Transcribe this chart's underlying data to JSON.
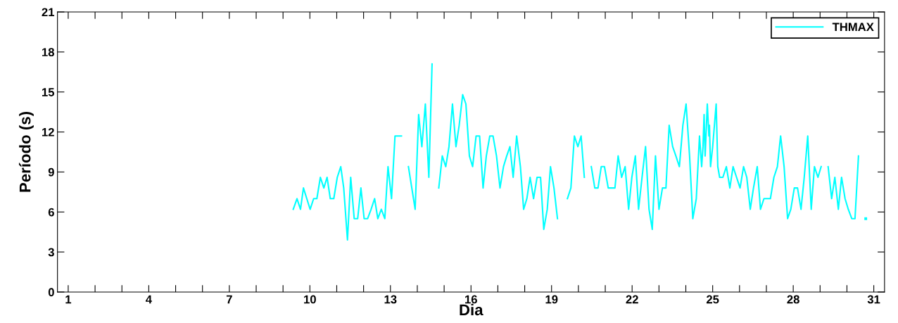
{
  "chart_data": {
    "type": "line",
    "xlabel": "Dia",
    "ylabel": "Período (s)",
    "xlim": [
      0.6,
      31.4
    ],
    "ylim": [
      0,
      21
    ],
    "xticks": [
      1,
      {
        "value": 2,
        "label": null
      },
      {
        "value": 3,
        "label": null
      },
      4,
      {
        "value": 5,
        "label": null
      },
      {
        "value": 6,
        "label": null
      },
      7,
      {
        "value": 8,
        "label": null
      },
      {
        "value": 9,
        "label": null
      },
      10,
      {
        "value": 11,
        "label": null
      },
      {
        "value": 12,
        "label": null
      },
      13,
      {
        "value": 14,
        "label": null
      },
      {
        "value": 15,
        "label": null
      },
      16,
      {
        "value": 17,
        "label": null
      },
      {
        "value": 18,
        "label": null
      },
      19,
      {
        "value": 20,
        "label": null
      },
      {
        "value": 21,
        "label": null
      },
      22,
      {
        "value": 23,
        "label": null
      },
      {
        "value": 24,
        "label": null
      },
      25,
      {
        "value": 26,
        "label": null
      },
      {
        "value": 27,
        "label": null
      },
      28,
      {
        "value": 29,
        "label": null
      },
      {
        "value": 30,
        "label": null
      },
      31
    ],
    "yticks": [
      0,
      3,
      6,
      9,
      12,
      15,
      18,
      21
    ],
    "grid": false,
    "legend": "top right",
    "marker": "none",
    "line_style": "solid",
    "series": [
      {
        "name": "THMAX",
        "color": "#00ffff",
        "x": [
          9.38,
          9.52,
          9.65,
          9.76,
          10.01,
          10.14,
          10.26,
          10.39,
          10.52,
          10.64,
          10.76,
          10.89,
          11.02,
          11.15,
          11.26,
          11.4,
          11.52,
          11.65,
          11.78,
          11.9,
          12.02,
          12.15,
          12.28,
          12.41,
          12.53,
          12.66,
          12.79,
          12.91,
          13.04,
          13.17,
          13.41,
          13.54,
          13.67,
          13.92,
          14.05,
          14.17,
          14.3,
          14.43,
          14.55,
          14.68,
          14.8,
          14.93,
          15.06,
          15.18,
          15.31,
          15.44,
          15.56,
          15.69,
          15.81,
          15.94,
          16.06,
          16.19,
          16.32,
          16.45,
          16.57,
          16.7,
          16.82,
          16.95,
          17.08,
          17.21,
          17.33,
          17.45,
          17.57,
          17.7,
          17.84,
          17.96,
          18.08,
          18.2,
          18.33,
          18.46,
          18.59,
          18.71,
          18.84,
          18.96,
          19.09,
          19.22,
          19.4,
          19.59,
          19.72,
          19.85,
          19.98,
          20.1,
          20.22,
          20.35,
          20.48,
          20.61,
          20.73,
          20.85,
          20.97,
          21.11,
          21.23,
          21.36,
          21.48,
          21.61,
          21.74,
          21.87,
          21.99,
          22.12,
          22.24,
          22.37,
          22.5,
          22.63,
          22.75,
          22.87,
          23.0,
          23.13,
          23.26,
          23.38,
          23.51,
          23.63,
          23.76,
          23.89,
          24.01,
          24.14,
          24.26,
          24.39,
          24.51,
          24.59,
          24.64,
          24.68,
          24.72,
          24.8,
          24.86,
          24.88,
          24.92,
          25.0,
          25.13,
          25.19,
          25.26,
          25.38,
          25.51,
          25.64,
          25.76,
          25.89,
          26.02,
          26.15,
          26.27,
          26.4,
          26.52,
          26.66,
          26.78,
          26.91,
          27.03,
          27.15,
          27.28,
          27.41,
          27.53,
          27.66,
          27.79,
          27.91,
          28.04,
          28.16,
          28.29,
          28.41,
          28.54,
          28.67,
          28.79,
          28.92,
          29.04,
          29.17,
          29.3,
          29.43,
          29.55,
          29.68,
          29.8,
          29.93,
          30.05,
          30.18,
          30.3,
          30.43
        ],
        "values": [
          6.2,
          7.0,
          6.2,
          7.8,
          6.2,
          7.0,
          7.0,
          8.6,
          7.8,
          8.6,
          7.0,
          7.0,
          8.6,
          9.4,
          7.8,
          3.9,
          8.6,
          5.5,
          5.5,
          7.8,
          5.5,
          5.5,
          6.2,
          7.0,
          5.5,
          6.2,
          5.5,
          9.4,
          7.0,
          11.7,
          11.7,
          null,
          9.4,
          6.2,
          13.3,
          10.9,
          14.1,
          8.6,
          17.1,
          null,
          7.8,
          10.2,
          9.4,
          10.9,
          14.1,
          10.9,
          12.5,
          14.8,
          14.1,
          10.2,
          9.4,
          11.7,
          11.7,
          7.8,
          10.2,
          11.7,
          11.7,
          10.2,
          7.8,
          9.4,
          10.2,
          10.9,
          8.6,
          11.7,
          9.4,
          6.2,
          7.0,
          8.6,
          7.0,
          8.6,
          8.6,
          4.7,
          6.2,
          9.4,
          7.8,
          5.5,
          null,
          7.0,
          7.8,
          11.7,
          10.9,
          11.7,
          8.6,
          null,
          9.4,
          7.8,
          7.8,
          9.4,
          9.4,
          7.8,
          7.8,
          7.8,
          10.2,
          8.6,
          9.4,
          6.2,
          8.6,
          10.2,
          6.2,
          8.6,
          10.9,
          6.2,
          4.7,
          10.2,
          6.2,
          7.8,
          7.8,
          12.5,
          10.9,
          10.2,
          9.4,
          12.5,
          14.1,
          10.2,
          5.5,
          7.0,
          11.7,
          9.4,
          10.9,
          13.3,
          10.2,
          14.1,
          11.7,
          12.5,
          9.4,
          10.9,
          14.1,
          9.4,
          8.6,
          8.6,
          9.4,
          7.8,
          9.4,
          8.6,
          7.8,
          9.4,
          8.6,
          6.2,
          7.8,
          9.4,
          6.2,
          7.0,
          7.0,
          7.0,
          8.6,
          9.4,
          11.7,
          9.4,
          5.5,
          6.2,
          7.8,
          7.8,
          6.2,
          8.6,
          11.7,
          6.2,
          9.4,
          8.6,
          9.4,
          null,
          9.4,
          7.0,
          8.6,
          6.2,
          8.6,
          7.0,
          6.2,
          5.5,
          5.5,
          10.2
        ]
      },
      {
        "type": "scatter",
        "marker": "square",
        "color": "#00ffff",
        "x": [
          30.7
        ],
        "values": [
          5.5
        ]
      }
    ]
  }
}
